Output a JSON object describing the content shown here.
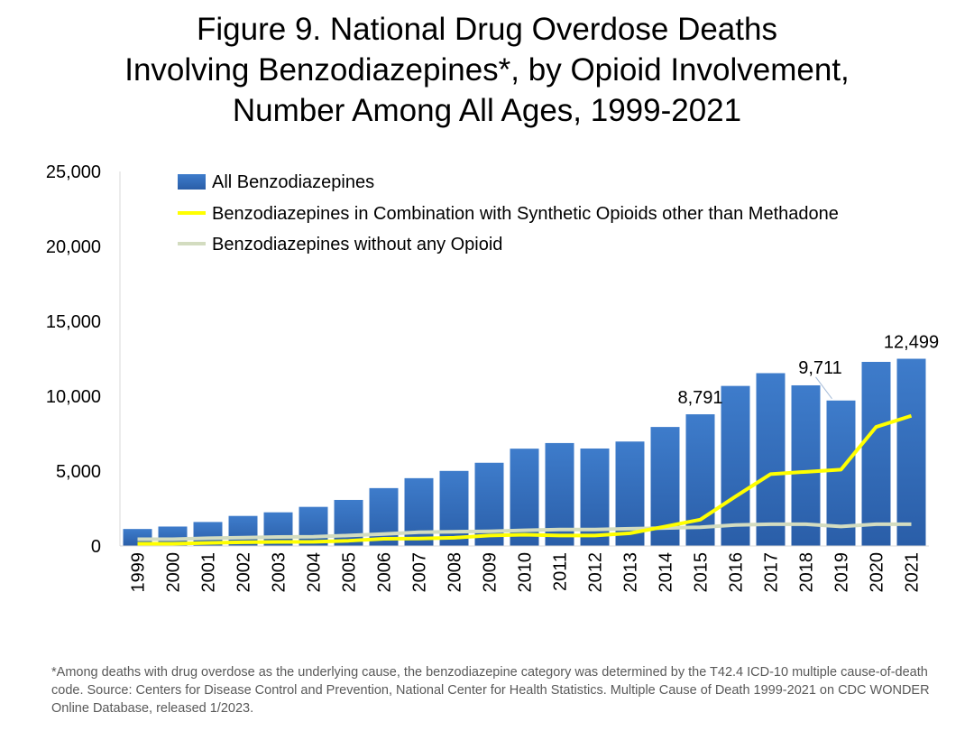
{
  "title_lines": [
    "Figure 9. National Drug Overdose Deaths",
    "Involving Benzodiazepines*, by Opioid Involvement,",
    "Number Among All Ages, 1999-2021"
  ],
  "footnote": "*Among deaths with drug overdose as the underlying cause, the benzodiazepine category was determined by the T42.4 ICD-10 multiple cause-of-death code. Source: Centers for Disease Control and Prevention, National Center for Health Statistics. Multiple Cause of Death 1999-2021 on CDC WONDER Online Database, released 1/2023.",
  "chart_data": {
    "type": "bar",
    "title": "Figure 9. National Drug Overdose Deaths Involving Benzodiazepines*, by Opioid Involvement, Number Among All Ages, 1999-2021",
    "xlabel": "",
    "ylabel": "",
    "ylim": [
      0,
      25000
    ],
    "yticks": [
      "0",
      "5,000",
      "10,000",
      "15,000",
      "20,000",
      "25,000"
    ],
    "ytick_values": [
      0,
      5000,
      10000,
      15000,
      20000,
      25000
    ],
    "grid": false,
    "legend_position": "top-left",
    "categories": [
      "1999",
      "2000",
      "2001",
      "2002",
      "2003",
      "2004",
      "2005",
      "2006",
      "2007",
      "2008",
      "2009",
      "2010",
      "2011",
      "2012",
      "2013",
      "2014",
      "2015",
      "2016",
      "2017",
      "2018",
      "2019",
      "2020",
      "2021"
    ],
    "series": [
      {
        "name": "All Benzodiazepines",
        "type": "bar",
        "color": "#3a78c6",
        "values": [
          1135,
          1298,
          1602,
          2007,
          2248,
          2611,
          3075,
          3864,
          4527,
          5012,
          5557,
          6497,
          6872,
          6507,
          6973,
          7945,
          8791,
          10684,
          11537,
          10724,
          9711,
          12290,
          12499
        ]
      },
      {
        "name": "Benzodiazepines in Combination with Synthetic Opioids other than Methadone",
        "type": "line",
        "color": "#ffff00",
        "values": [
          150,
          150,
          200,
          250,
          270,
          280,
          350,
          480,
          500,
          550,
          700,
          750,
          700,
          700,
          850,
          1300,
          1760,
          3300,
          4800,
          4950,
          5100,
          7950,
          8690
        ]
      },
      {
        "name": "Benzodiazepines without any Opioid",
        "type": "line",
        "color": "#d3dcc0",
        "values": [
          450,
          450,
          520,
          560,
          600,
          620,
          700,
          800,
          920,
          950,
          980,
          1050,
          1100,
          1100,
          1150,
          1200,
          1250,
          1400,
          1450,
          1450,
          1300,
          1450,
          1450
        ]
      }
    ],
    "data_labels": [
      {
        "category": "2015",
        "text": "8,791"
      },
      {
        "category": "2019",
        "text": "9,711"
      },
      {
        "category": "2021",
        "text": "12,499"
      }
    ]
  }
}
